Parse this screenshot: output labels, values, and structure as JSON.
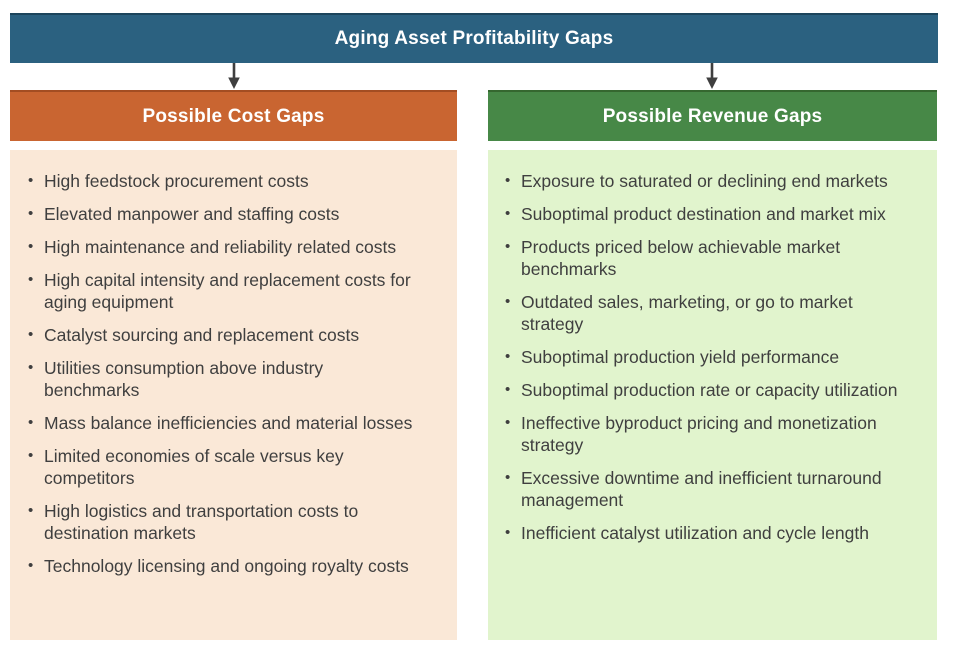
{
  "title": "Aging Asset Profitability Gaps",
  "colors": {
    "title_bar": "#2B6180",
    "cost_header": "#C96531",
    "cost_body": "#FAE8D7",
    "revenue_header": "#478847",
    "revenue_body": "#E1F4CD",
    "body_text": "#3F3F3F",
    "header_text": "#FFFFFF",
    "arrow": "#3F3F3F"
  },
  "icons": {
    "down_arrow": "down-arrow-icon"
  },
  "columns": [
    {
      "header": "Possible Cost Gaps",
      "items": [
        "High feedstock procurement costs",
        "Elevated manpower and staffing costs",
        "High maintenance and reliability related costs",
        "High capital intensity and replacement costs for aging equipment",
        "Catalyst sourcing and replacement costs",
        "Utilities consumption above industry benchmarks",
        "Mass balance inefficiencies and material losses",
        "Limited economies of scale versus key competitors",
        "High logistics and transportation costs to destination markets",
        "Technology licensing and ongoing royalty costs"
      ]
    },
    {
      "header": "Possible Revenue Gaps",
      "items": [
        "Exposure to saturated or declining end markets",
        "Suboptimal product destination and market mix",
        "Products priced below achievable market benchmarks",
        "Outdated sales, marketing, or go to market strategy",
        "Suboptimal production yield performance",
        "Suboptimal production rate or capacity utilization",
        "Ineffective byproduct pricing and monetization strategy",
        "Excessive downtime and inefficient turnaround management",
        "Inefficient catalyst utilization and cycle length"
      ]
    }
  ]
}
